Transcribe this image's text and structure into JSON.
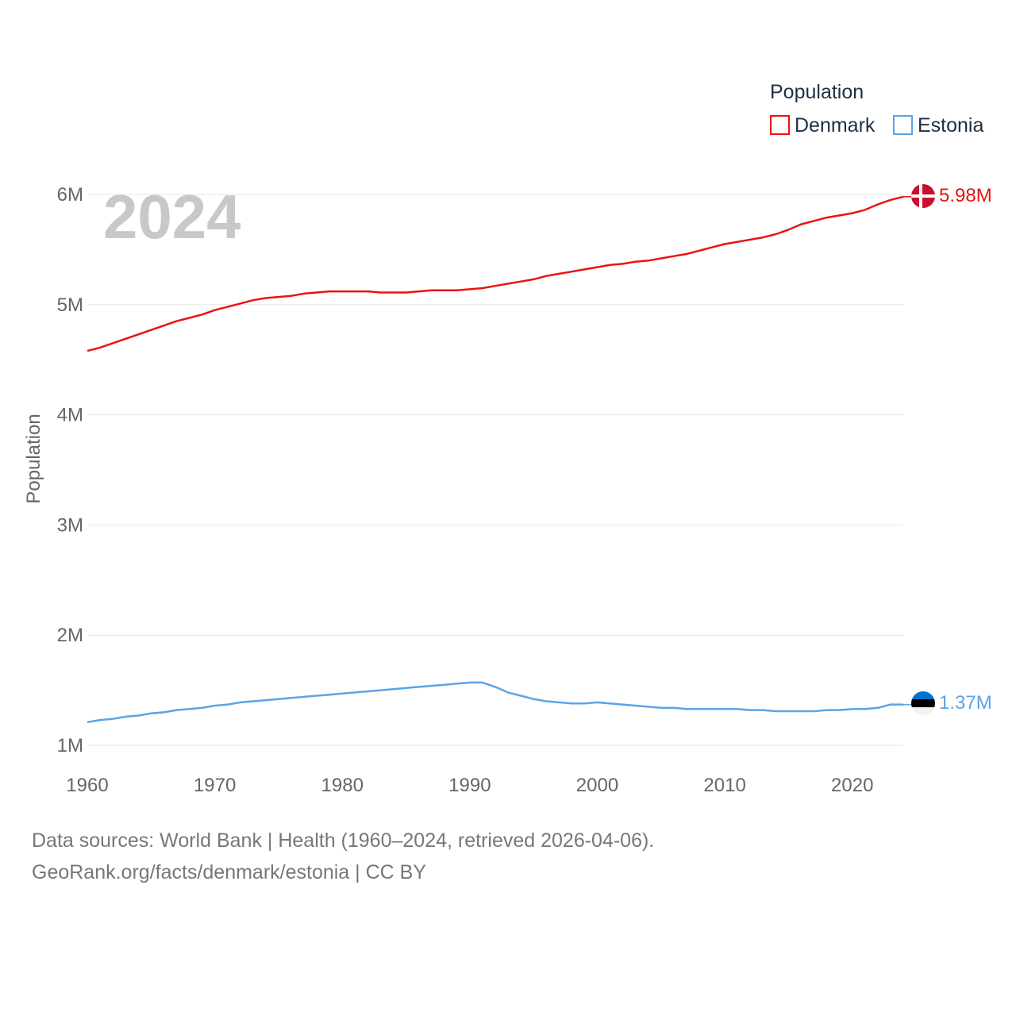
{
  "chart_data": {
    "type": "line",
    "title": "Population",
    "ylabel": "Population",
    "xlabel": "",
    "year_label": "2024",
    "x": [
      1960,
      1961,
      1962,
      1963,
      1964,
      1965,
      1966,
      1967,
      1968,
      1969,
      1970,
      1971,
      1972,
      1973,
      1974,
      1975,
      1976,
      1977,
      1978,
      1979,
      1980,
      1981,
      1982,
      1983,
      1984,
      1985,
      1986,
      1987,
      1988,
      1989,
      1990,
      1991,
      1992,
      1993,
      1994,
      1995,
      1996,
      1997,
      1998,
      1999,
      2000,
      2001,
      2002,
      2003,
      2004,
      2005,
      2006,
      2007,
      2008,
      2009,
      2010,
      2011,
      2012,
      2013,
      2014,
      2015,
      2016,
      2017,
      2018,
      2019,
      2020,
      2021,
      2022,
      2023,
      2024
    ],
    "xlim": [
      1960,
      2024
    ],
    "ylim": [
      1000000,
      6000000
    ],
    "x_ticks": [
      1960,
      1970,
      1980,
      1990,
      2000,
      2010,
      2020
    ],
    "x_tick_labels": [
      "1960",
      "1970",
      "1980",
      "1990",
      "2000",
      "2010",
      "2020"
    ],
    "y_ticks": [
      1000000,
      2000000,
      3000000,
      4000000,
      5000000,
      6000000
    ],
    "y_tick_labels": [
      "1M",
      "2M",
      "3M",
      "4M",
      "5M",
      "6M"
    ],
    "legend": {
      "title": "Population",
      "position": "top-right"
    },
    "series": [
      {
        "name": "Denmark",
        "color": "#ee1111",
        "end_label": "5.98M",
        "flag": "denmark-flag-icon",
        "values": [
          4580000,
          4610000,
          4650000,
          4690000,
          4730000,
          4770000,
          4810000,
          4850000,
          4880000,
          4910000,
          4950000,
          4980000,
          5010000,
          5040000,
          5060000,
          5070000,
          5080000,
          5100000,
          5110000,
          5120000,
          5120000,
          5120000,
          5120000,
          5110000,
          5110000,
          5110000,
          5120000,
          5130000,
          5130000,
          5130000,
          5140000,
          5150000,
          5170000,
          5190000,
          5210000,
          5230000,
          5260000,
          5280000,
          5300000,
          5320000,
          5340000,
          5360000,
          5370000,
          5390000,
          5400000,
          5420000,
          5440000,
          5460000,
          5490000,
          5520000,
          5550000,
          5570000,
          5590000,
          5610000,
          5640000,
          5680000,
          5730000,
          5760000,
          5790000,
          5810000,
          5830000,
          5860000,
          5910000,
          5950000,
          5980000
        ]
      },
      {
        "name": "Estonia",
        "color": "#5ba4e6",
        "end_label": "1.37M",
        "flag": "estonia-flag-icon",
        "values": [
          1210000,
          1230000,
          1240000,
          1260000,
          1270000,
          1290000,
          1300000,
          1320000,
          1330000,
          1340000,
          1360000,
          1370000,
          1390000,
          1400000,
          1410000,
          1420000,
          1430000,
          1440000,
          1450000,
          1460000,
          1470000,
          1480000,
          1490000,
          1500000,
          1510000,
          1520000,
          1530000,
          1540000,
          1550000,
          1560000,
          1570000,
          1570000,
          1530000,
          1480000,
          1450000,
          1420000,
          1400000,
          1390000,
          1380000,
          1380000,
          1390000,
          1380000,
          1370000,
          1360000,
          1350000,
          1340000,
          1340000,
          1330000,
          1330000,
          1330000,
          1330000,
          1330000,
          1320000,
          1320000,
          1310000,
          1310000,
          1310000,
          1310000,
          1320000,
          1320000,
          1330000,
          1330000,
          1340000,
          1370000,
          1370000
        ]
      }
    ]
  },
  "footer": {
    "sources": "Data sources: World Bank | Health (1960–2024, retrieved 2026-04-06).",
    "attribution": "GeoRank.org/facts/denmark/estonia | CC BY"
  }
}
